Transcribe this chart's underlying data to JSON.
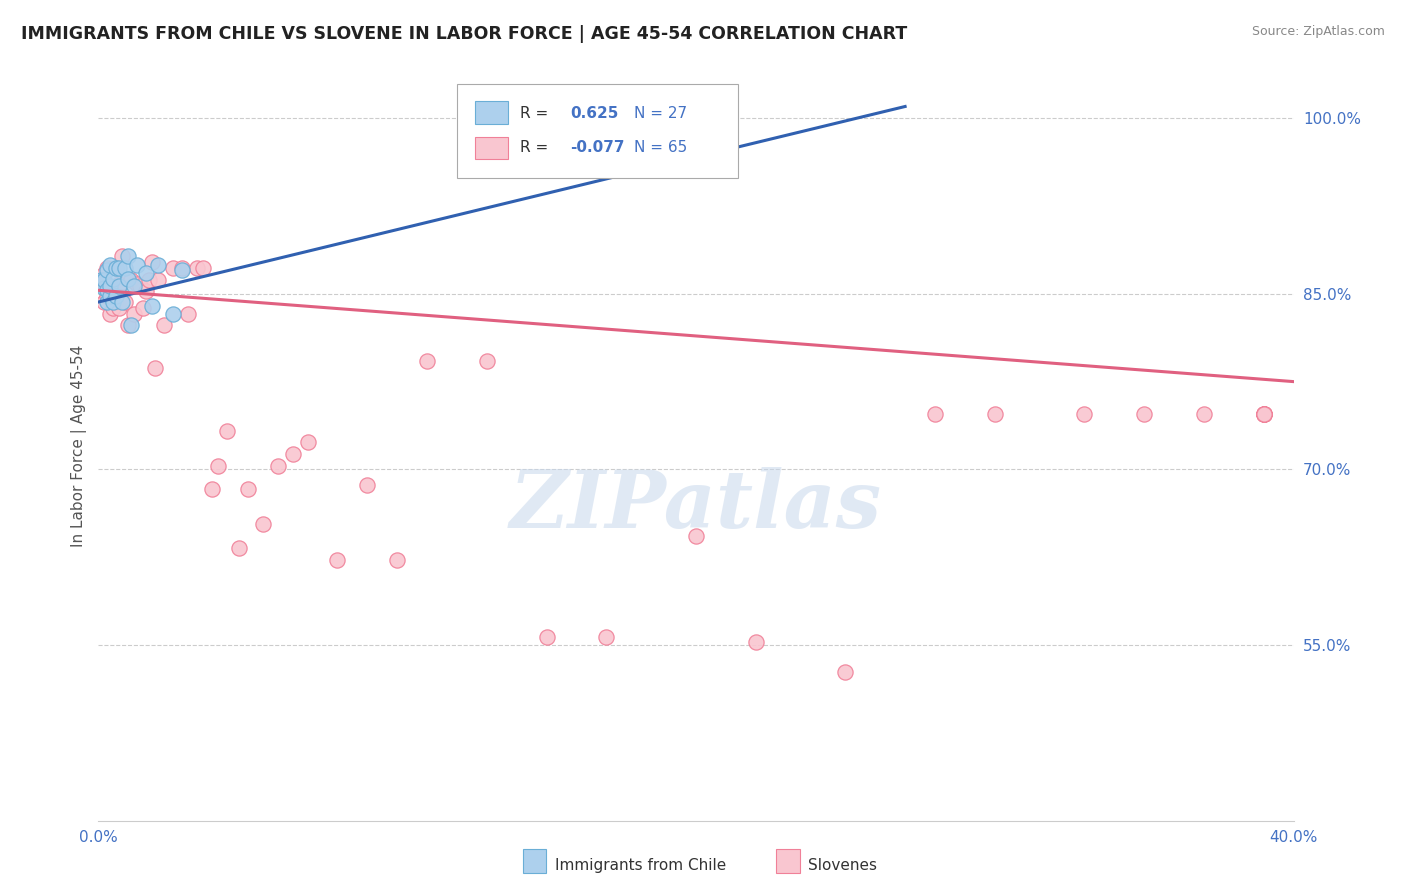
{
  "title": "IMMIGRANTS FROM CHILE VS SLOVENE IN LABOR FORCE | AGE 45-54 CORRELATION CHART",
  "source": "Source: ZipAtlas.com",
  "ylabel": "In Labor Force | Age 45-54",
  "legend_blue_label": "Immigrants from Chile",
  "legend_pink_label": "Slovenes",
  "xlim": [
    0.0,
    0.4
  ],
  "ylim": [
    0.4,
    1.04
  ],
  "yticks": [
    0.55,
    0.7,
    0.85,
    1.0
  ],
  "ytick_labels": [
    "55.0%",
    "70.0%",
    "85.0%",
    "100.0%"
  ],
  "blue_color": "#ADD0ED",
  "blue_edge_color": "#6AAED6",
  "pink_color": "#F9C6D0",
  "pink_edge_color": "#F08098",
  "blue_line_color": "#3060B0",
  "pink_line_color": "#E06080",
  "blue_R": "0.625",
  "blue_N": "27",
  "pink_R": "-0.077",
  "pink_N": "65",
  "blue_dots_x": [
    0.001,
    0.002,
    0.002,
    0.003,
    0.003,
    0.003,
    0.004,
    0.004,
    0.004,
    0.005,
    0.005,
    0.006,
    0.006,
    0.007,
    0.007,
    0.008,
    0.009,
    0.01,
    0.01,
    0.011,
    0.012,
    0.013,
    0.016,
    0.018,
    0.02,
    0.025,
    0.028
  ],
  "blue_dots_y": [
    0.862,
    0.855,
    0.862,
    0.843,
    0.853,
    0.87,
    0.848,
    0.857,
    0.875,
    0.843,
    0.863,
    0.848,
    0.872,
    0.857,
    0.872,
    0.843,
    0.872,
    0.882,
    0.863,
    0.823,
    0.857,
    0.875,
    0.868,
    0.84,
    0.875,
    0.833,
    0.87
  ],
  "pink_dots_x": [
    0.001,
    0.001,
    0.002,
    0.002,
    0.003,
    0.003,
    0.003,
    0.004,
    0.004,
    0.005,
    0.005,
    0.006,
    0.006,
    0.007,
    0.007,
    0.008,
    0.008,
    0.009,
    0.01,
    0.011,
    0.012,
    0.013,
    0.014,
    0.015,
    0.016,
    0.017,
    0.018,
    0.019,
    0.02,
    0.022,
    0.025,
    0.028,
    0.03,
    0.033,
    0.035,
    0.038,
    0.04,
    0.043,
    0.047,
    0.05,
    0.055,
    0.06,
    0.065,
    0.07,
    0.08,
    0.09,
    0.1,
    0.11,
    0.13,
    0.15,
    0.17,
    0.2,
    0.22,
    0.25,
    0.28,
    0.3,
    0.33,
    0.35,
    0.37,
    0.39,
    0.39,
    0.39,
    0.39,
    0.39,
    0.39
  ],
  "pink_dots_y": [
    0.858,
    0.862,
    0.843,
    0.867,
    0.848,
    0.857,
    0.872,
    0.833,
    0.848,
    0.838,
    0.853,
    0.843,
    0.872,
    0.838,
    0.858,
    0.847,
    0.882,
    0.843,
    0.823,
    0.862,
    0.833,
    0.858,
    0.857,
    0.838,
    0.852,
    0.862,
    0.877,
    0.787,
    0.862,
    0.823,
    0.872,
    0.872,
    0.833,
    0.872,
    0.872,
    0.683,
    0.703,
    0.733,
    0.633,
    0.683,
    0.653,
    0.703,
    0.713,
    0.723,
    0.623,
    0.687,
    0.623,
    0.793,
    0.793,
    0.557,
    0.557,
    0.643,
    0.553,
    0.527,
    0.747,
    0.747,
    0.747,
    0.747,
    0.747,
    0.747,
    0.747,
    0.747,
    0.747,
    0.747,
    0.747
  ],
  "blue_trend_x": [
    0.0,
    0.27
  ],
  "blue_trend_y": [
    0.843,
    1.01
  ],
  "pink_trend_x": [
    0.0,
    0.4
  ],
  "pink_trend_y": [
    0.853,
    0.775
  ]
}
